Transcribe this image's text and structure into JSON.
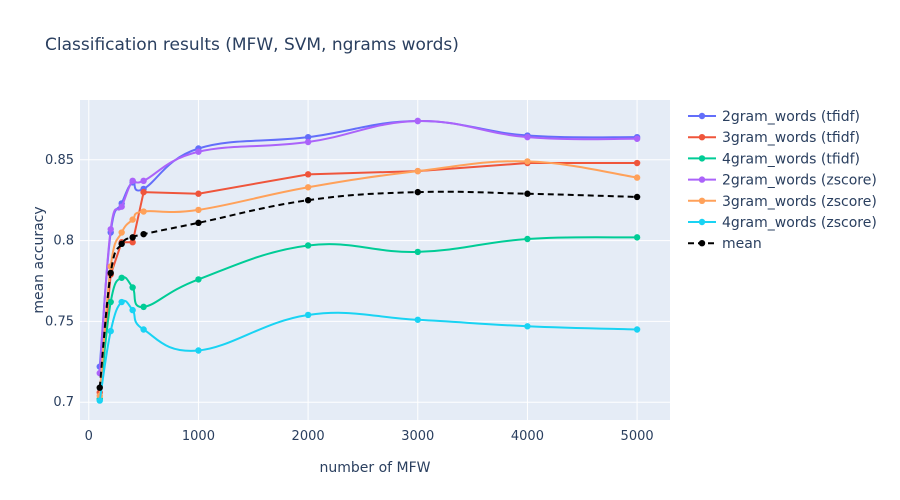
{
  "chart_data": {
    "type": "line",
    "title": "Classification results (MFW, SVM, ngrams words)",
    "xlabel": "number of MFW",
    "ylabel": "mean accuracy",
    "x": [
      100,
      200,
      300,
      400,
      500,
      1000,
      2000,
      3000,
      4000,
      5000
    ],
    "xlim": [
      -80,
      5300
    ],
    "ylim": [
      0.689,
      0.887
    ],
    "xticks": [
      0,
      1000,
      2000,
      3000,
      4000,
      5000
    ],
    "xtick_labels": [
      "0",
      "1000",
      "2000",
      "3000",
      "4000",
      "5000"
    ],
    "yticks": [
      0.7,
      0.75,
      0.8,
      0.85
    ],
    "ytick_labels": [
      "0.7",
      "0.75",
      "0.8",
      "0.85"
    ],
    "grid": true,
    "legend_position": "right",
    "series": [
      {
        "name": "2gram_words (tfidf)",
        "color": "#636efa",
        "dash": "solid",
        "line": "spline",
        "values": [
          0.722,
          0.805,
          0.823,
          0.836,
          0.832,
          0.857,
          0.864,
          0.874,
          0.865,
          0.864
        ]
      },
      {
        "name": "3gram_words (tfidf)",
        "color": "#ef553b",
        "dash": "solid",
        "line": "linear",
        "values": [
          0.706,
          0.779,
          0.799,
          0.799,
          0.83,
          0.829,
          0.841,
          0.843,
          0.848,
          0.848
        ]
      },
      {
        "name": "4gram_words (tfidf)",
        "color": "#00cc96",
        "dash": "solid",
        "line": "spline",
        "values": [
          0.702,
          0.762,
          0.777,
          0.771,
          0.759,
          0.776,
          0.797,
          0.793,
          0.801,
          0.802
        ]
      },
      {
        "name": "2gram_words (zscore)",
        "color": "#ab63fa",
        "dash": "solid",
        "line": "spline",
        "values": [
          0.718,
          0.807,
          0.821,
          0.837,
          0.837,
          0.855,
          0.861,
          0.874,
          0.864,
          0.863
        ]
      },
      {
        "name": "3gram_words (zscore)",
        "color": "#ffa15a",
        "dash": "solid",
        "line": "spline",
        "values": [
          0.704,
          0.784,
          0.805,
          0.813,
          0.818,
          0.819,
          0.833,
          0.843,
          0.849,
          0.839
        ]
      },
      {
        "name": "4gram_words (zscore)",
        "color": "#19d3f3",
        "dash": "solid",
        "line": "spline",
        "values": [
          0.701,
          0.744,
          0.762,
          0.757,
          0.745,
          0.732,
          0.754,
          0.751,
          0.747,
          0.745
        ]
      },
      {
        "name": "mean",
        "color": "#000000",
        "dash": "dash",
        "line": "spline",
        "values": [
          0.709,
          0.78,
          0.798,
          0.802,
          0.804,
          0.811,
          0.825,
          0.83,
          0.829,
          0.827
        ]
      }
    ]
  }
}
